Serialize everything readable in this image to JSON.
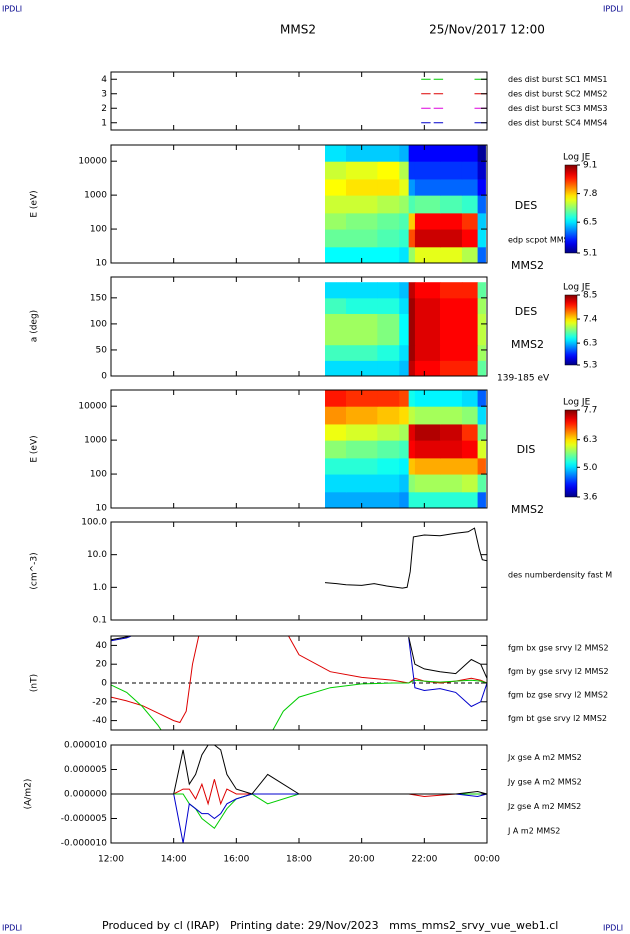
{
  "header": {
    "left_mark": "IPDLI",
    "right_mark": "IPDLI",
    "title": "MMS2",
    "date": "25/Nov/2017 12:00"
  },
  "footer": {
    "text": "Produced by cl (IRAP)   Printing date: 29/Nov/2023   mms_mms2_srvy_vue_web1.cl",
    "left_mark": "IPDLI",
    "right_mark": "IPDLI"
  },
  "chart_data": [
    {
      "type": "line",
      "xlim": [
        12,
        24
      ],
      "ylim": [
        0.5,
        4.5
      ],
      "yticks": [
        1,
        2,
        3,
        4
      ],
      "x": [
        21.9,
        22.2,
        22.25,
        22.3,
        22.6,
        22.65,
        23.6,
        24
      ],
      "series": [
        {
          "name": "des dist burst SC1 MMS1",
          "color": "#0000cc",
          "values": [
            1,
            1,
            null,
            1,
            1,
            null,
            1,
            1
          ]
        },
        {
          "name": "des dist burst SC2 MMS2",
          "color": "#dd00dd",
          "values": [
            2,
            2,
            null,
            2,
            2,
            null,
            2,
            2
          ]
        },
        {
          "name": "des dist burst SC3 MMS3",
          "color": "#dd0000",
          "values": [
            3,
            3,
            null,
            3,
            3,
            null,
            3,
            3
          ]
        },
        {
          "name": "des dist burst SC4 MMS4",
          "color": "#00cc00",
          "values": [
            4,
            4,
            null,
            4,
            4,
            null,
            4,
            4
          ]
        }
      ]
    },
    {
      "type": "heatmap",
      "ylabel": "E (eV)",
      "log": true,
      "xlim": [
        12,
        24
      ],
      "ylim": [
        10,
        30000
      ],
      "yticks": [
        10,
        100,
        1000,
        10000
      ],
      "labels": [
        "DES",
        "edp scpot MMS2",
        "MMS2"
      ],
      "colormap": "jet",
      "colorbar_label": "Log JE",
      "clim": [
        5.1,
        9.1
      ],
      "cticks": [
        5.1,
        6.5,
        7.8,
        9.1
      ],
      "x_bins": [
        18.83,
        19.5,
        20.5,
        21.2,
        21.5,
        21.7,
        22.5,
        23.2,
        23.7,
        23.95
      ],
      "y_bins": [
        10,
        30,
        100,
        300,
        1000,
        3000,
        10000,
        30000
      ],
      "values": [
        [
          6.6,
          6.6,
          6.6,
          6.5,
          7.2,
          7.5,
          7.5,
          7.3,
          6.0
        ],
        [
          7.0,
          7.0,
          6.9,
          6.8,
          8.3,
          8.8,
          8.8,
          8.6,
          6.5
        ],
        [
          7.2,
          7.1,
          7.0,
          6.9,
          7.8,
          8.6,
          8.6,
          8.4,
          6.4
        ],
        [
          7.4,
          7.4,
          7.3,
          7.2,
          6.9,
          7.0,
          6.9,
          6.8,
          6.0
        ],
        [
          7.6,
          7.7,
          7.7,
          7.5,
          6.2,
          6.0,
          6.0,
          6.0,
          5.6
        ],
        [
          7.4,
          7.5,
          7.6,
          7.3,
          5.8,
          5.8,
          5.8,
          5.8,
          5.4
        ],
        [
          6.5,
          6.4,
          6.4,
          6.3,
          5.6,
          5.6,
          5.6,
          5.6,
          5.2
        ]
      ]
    },
    {
      "type": "heatmap",
      "ylabel": "a (deg)",
      "xlim": [
        12,
        24
      ],
      "ylim": [
        0,
        190
      ],
      "yticks": [
        0,
        50,
        100,
        150
      ],
      "labels": [
        "DES",
        "MMS2",
        "139-185 eV"
      ],
      "colormap": "jet",
      "colorbar_label": "Log JE",
      "clim": [
        5.3,
        8.5
      ],
      "cticks": [
        5.3,
        6.3,
        7.4,
        8.5
      ],
      "x_bins": [
        18.83,
        19.5,
        20.5,
        21.2,
        21.5,
        21.7,
        22.5,
        23.2,
        23.7,
        23.95
      ],
      "y_bins": [
        0,
        30,
        60,
        120,
        150,
        180
      ],
      "values": [
        [
          6.4,
          6.4,
          6.4,
          6.3,
          8.3,
          8.1,
          8.0,
          8.0,
          6.8
        ],
        [
          6.7,
          6.7,
          6.6,
          6.4,
          8.4,
          8.2,
          8.1,
          8.1,
          7.0
        ],
        [
          7.0,
          7.0,
          6.9,
          6.5,
          8.4,
          8.2,
          8.1,
          8.1,
          7.1
        ],
        [
          6.7,
          6.6,
          6.6,
          6.4,
          8.4,
          8.2,
          8.1,
          8.1,
          7.0
        ],
        [
          6.4,
          6.4,
          6.4,
          6.3,
          8.3,
          8.1,
          8.0,
          8.0,
          6.8
        ]
      ]
    },
    {
      "type": "heatmap",
      "ylabel": "E (eV)",
      "log": true,
      "xlim": [
        12,
        24
      ],
      "ylim": [
        10,
        30000
      ],
      "yticks": [
        10,
        100,
        1000,
        10000
      ],
      "labels": [
        "DIS",
        "MMS2"
      ],
      "colormap": "jet",
      "colorbar_label": "Log JE",
      "clim": [
        3.6,
        7.7
      ],
      "cticks": [
        3.6,
        {
          "value": 5,
          "label": "5.0"
        },
        6.3,
        7.7
      ],
      "x_bins": [
        18.83,
        19.5,
        20.5,
        21.2,
        21.5,
        21.7,
        22.5,
        23.2,
        23.7,
        23.95
      ],
      "y_bins": [
        10,
        30,
        100,
        300,
        1000,
        3000,
        10000,
        30000
      ],
      "values": [
        [
          4.8,
          4.8,
          4.8,
          4.7,
          5.3,
          5.3,
          5.3,
          5.3,
          4.5
        ],
        [
          5.0,
          5.0,
          5.0,
          4.9,
          5.7,
          5.8,
          5.8,
          5.9,
          5.5
        ],
        [
          5.3,
          5.3,
          5.2,
          5.1,
          6.4,
          6.5,
          6.5,
          6.5,
          6.8
        ],
        [
          5.7,
          5.6,
          5.5,
          5.4,
          7.2,
          7.3,
          7.3,
          7.2,
          6.0
        ],
        [
          6.1,
          6.0,
          5.9,
          5.8,
          7.3,
          7.5,
          7.4,
          7.0,
          5.6
        ],
        [
          6.6,
          6.5,
          6.4,
          6.3,
          5.9,
          5.8,
          5.8,
          5.7,
          5.0
        ],
        [
          7.1,
          7.0,
          7.0,
          6.9,
          5.2,
          5.1,
          5.1,
          5.0,
          4.5
        ]
      ]
    },
    {
      "type": "line",
      "ylabel": "(cm^-3)",
      "log": true,
      "xlim": [
        12,
        24
      ],
      "ylim": [
        0.1,
        100
      ],
      "yticks": [
        0.1,
        {
          "value": 1,
          "label": "1.0"
        },
        {
          "value": 10,
          "label": "10.0"
        },
        {
          "value": 100,
          "label": "100.0"
        }
      ],
      "x": [
        18.83,
        19.2,
        19.5,
        20.0,
        20.4,
        20.8,
        21.3,
        21.45,
        21.55,
        21.65,
        22.0,
        22.5,
        23.0,
        23.4,
        23.6,
        23.75,
        23.85,
        24
      ],
      "series": [
        {
          "name": "des numberdensity fast M",
          "color": "#000000",
          "values": [
            1.4,
            1.3,
            1.2,
            1.15,
            1.3,
            1.1,
            0.95,
            1.0,
            3,
            35,
            40,
            38,
            45,
            50,
            65,
            15,
            7,
            6.5
          ]
        }
      ]
    },
    {
      "type": "line",
      "ylabel": "(nT)",
      "xlim": [
        12,
        24
      ],
      "ylim": [
        -50,
        50
      ],
      "yticks": [
        -40,
        -20,
        0,
        20,
        40
      ],
      "zero_line": true,
      "x": [
        12,
        12.5,
        13,
        13.5,
        14,
        14.2,
        14.4,
        14.6,
        15,
        16,
        17,
        17.5,
        18,
        19,
        20,
        21,
        21.5,
        21.7,
        22,
        22.5,
        23,
        23.5,
        23.8,
        24
      ],
      "series": [
        {
          "name": "fgm bx gse srvy l2 MMS2",
          "color": "#dd0000",
          "values": [
            -15,
            -19,
            -24,
            -32,
            -40,
            -42,
            -30,
            20,
            80,
            null,
            null,
            60,
            30,
            12,
            6,
            3,
            0,
            5,
            2,
            0,
            2,
            5,
            3,
            0
          ]
        },
        {
          "name": "fgm by gse srvy l2 MMS2",
          "color": "#00cc00",
          "values": [
            -2,
            -10,
            -25,
            -45,
            -70,
            null,
            null,
            null,
            null,
            null,
            -60,
            -30,
            -15,
            -5,
            -1,
            0,
            0,
            3,
            2,
            1,
            2,
            3,
            2,
            0
          ]
        },
        {
          "name": "fgm bz gse srvy l2 MMS2",
          "color": "#0000cc",
          "values": [
            45,
            48,
            55,
            null,
            null,
            null,
            null,
            null,
            null,
            null,
            null,
            null,
            null,
            null,
            null,
            null,
            48,
            -5,
            -8,
            -6,
            -10,
            -25,
            -20,
            0
          ]
        },
        {
          "name": "fgm bt gse srvy l2 MMS2",
          "color": "#000000",
          "values": [
            46,
            49,
            56,
            null,
            null,
            null,
            null,
            null,
            null,
            null,
            null,
            null,
            null,
            null,
            null,
            null,
            49,
            20,
            15,
            12,
            10,
            25,
            20,
            5
          ]
        }
      ]
    },
    {
      "type": "line",
      "ylabel": "(A/m2)",
      "xlim": [
        12,
        24
      ],
      "ylim": [
        -1e-05,
        1e-05
      ],
      "yticks": [
        {
          "value": -1e-05,
          "label": "-0.000010"
        },
        {
          "value": -5e-06,
          "label": "-0.000005"
        },
        {
          "value": 0,
          "label": "0.000000"
        },
        {
          "value": 5e-06,
          "label": "0.000005"
        },
        {
          "value": 1e-05,
          "label": "0.000010"
        }
      ],
      "xticks": [
        {
          "value": 12,
          "label": "12:00"
        },
        {
          "value": 14,
          "label": "14:00"
        },
        {
          "value": 16,
          "label": "16:00"
        },
        {
          "value": 18,
          "label": "18:00"
        },
        {
          "value": 20,
          "label": "20:00"
        },
        {
          "value": 22,
          "label": "22:00"
        },
        {
          "value": 24,
          "label": "00:00"
        }
      ],
      "x": [
        12,
        13,
        14,
        14.3,
        14.5,
        14.7,
        14.9,
        15.1,
        15.3,
        15.5,
        15.7,
        16,
        16.5,
        17,
        18,
        20,
        21.5,
        22,
        23,
        23.7,
        24
      ],
      "series": [
        {
          "name": "Jx gse A m2 MMS2",
          "color": "#dd0000",
          "values": [
            0,
            0,
            0,
            1e-06,
            1e-06,
            -1e-06,
            2e-06,
            -2e-06,
            3e-06,
            -2e-06,
            1e-06,
            0,
            0,
            0,
            0,
            0,
            0,
            -5e-07,
            0,
            0,
            0
          ]
        },
        {
          "name": "Jy gse A m2 MMS2",
          "color": "#00cc00",
          "values": [
            0,
            0,
            0,
            0,
            -2e-06,
            -3e-06,
            -5e-06,
            -6e-06,
            -7e-06,
            -5e-06,
            -3e-06,
            -1e-06,
            0,
            -2e-06,
            0,
            0,
            0,
            0,
            0,
            0,
            0
          ]
        },
        {
          "name": "Jz gse A m2 MMS2",
          "color": "#0000cc",
          "values": [
            0,
            0,
            0,
            -1e-05,
            -2e-06,
            -3e-06,
            -4e-06,
            -4e-06,
            -5e-06,
            -4e-06,
            -2e-06,
            -1e-06,
            0,
            0,
            0,
            0,
            0,
            0,
            0,
            -5e-07,
            0
          ]
        },
        {
          "name": "J A m2 MMS2",
          "color": "#000000",
          "values": [
            0,
            0,
            0,
            9e-06,
            2e-06,
            4e-06,
            8e-06,
            1e-05,
            1e-05,
            9e-06,
            4e-06,
            1e-06,
            0,
            4e-06,
            0,
            0,
            0,
            0,
            0,
            5e-07,
            0
          ]
        }
      ]
    }
  ]
}
